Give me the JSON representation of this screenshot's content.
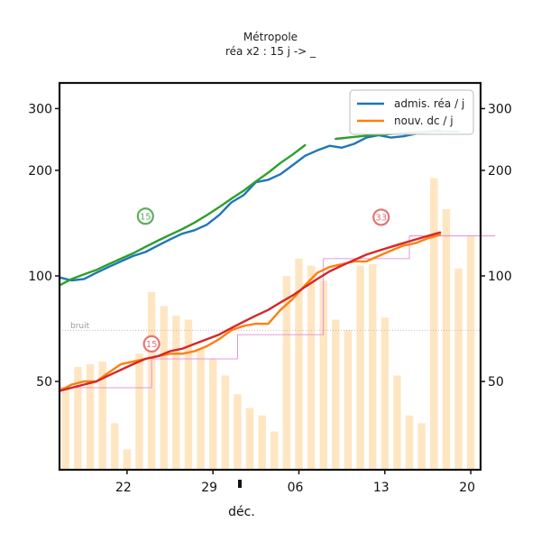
{
  "chart_data": {
    "type": "line",
    "title": "Métropole",
    "subtitle": "réa x2 : 15 j -> _",
    "xlabel": "déc.",
    "ylabel": "",
    "x_tick_labels": [
      "22",
      "29",
      "06",
      "13",
      "20"
    ],
    "x_tick_days": [
      0,
      7,
      14,
      21,
      28
    ],
    "x_range_days": [
      -5.5,
      28.8
    ],
    "y_ticks": [
      50,
      100,
      200,
      300
    ],
    "y_scale": "log",
    "y_range": [
      28,
      355
    ],
    "grid": false,
    "legend_position": "top-right",
    "legend": [
      {
        "label": "admis. réa / j",
        "color": "#1f77b4"
      },
      {
        "label": "nouv. dc / j",
        "color": "#ff7f0e"
      }
    ],
    "noise_label": "bruit",
    "noise_level": 70,
    "bars": {
      "color": "#ffe6c2",
      "start_day": -5,
      "values": [
        48,
        55,
        56,
        57,
        38,
        32,
        60,
        90,
        82,
        77,
        75,
        62,
        58,
        52,
        46,
        42,
        40,
        36,
        100,
        112,
        107,
        97,
        75,
        70,
        107,
        108,
        76,
        52,
        40,
        38,
        190,
        155,
        105,
        130,
        88,
        110,
        115,
        142,
        67,
        58,
        105,
        230,
        100,
        120,
        130,
        160,
        160,
        155,
        82,
        72,
        70
      ]
    },
    "series": [
      {
        "name": "admis. réa / j",
        "color": "#1f77b4",
        "x": [
          -5.5,
          -4.5,
          -3.5,
          -2.5,
          -1.5,
          -0.5,
          0.5,
          1.5,
          2.5,
          3.5,
          4.5,
          5.5,
          6.5,
          7.5,
          8.5,
          9.5,
          10.5,
          11.5,
          12.5,
          13.5,
          14.5,
          15.5,
          16.5,
          17.5,
          18.5,
          19.5,
          20.5,
          21.5,
          22.5,
          23.5,
          24.5,
          25.5
        ],
        "y": [
          99,
          97,
          98,
          102,
          106,
          110,
          114,
          117,
          122,
          127,
          132,
          135,
          140,
          149,
          162,
          170,
          185,
          188,
          195,
          207,
          220,
          228,
          235,
          232,
          238,
          248,
          252,
          248,
          250,
          254,
          258,
          260
        ]
      },
      {
        "name": "admis. réa lissé",
        "color": "#2ca02c",
        "x": [
          -5.5,
          -4.5,
          -3.5,
          -2.5,
          -1.5,
          -0.5,
          0.5,
          1.5,
          2.5,
          3.5,
          4.5,
          5.5,
          6.5,
          7.5,
          8.5,
          9.5,
          10.5,
          11.5,
          12.5,
          13.5,
          14.5
        ],
        "y": [
          94,
          98,
          101,
          104,
          108,
          112,
          116,
          121,
          126,
          131,
          136,
          142,
          149,
          157,
          166,
          175,
          186,
          197,
          210,
          222,
          236
        ]
      },
      {
        "name": "admis. réa lissé (suite)",
        "color": "#2ca02c",
        "x": [
          17.0,
          18.0,
          19.0,
          20.0,
          21.0,
          22.0,
          23.0,
          24.0,
          25.0,
          26.0,
          27.0
        ],
        "y": [
          246,
          248,
          250,
          252,
          253,
          255,
          256,
          257,
          258,
          258,
          258
        ]
      },
      {
        "name": "nouv. dc / j",
        "color": "#ff7f0e",
        "x": [
          -5.5,
          -4.5,
          -3.5,
          -2.5,
          -1.5,
          -0.5,
          0.5,
          1.5,
          2.5,
          3.5,
          4.5,
          5.5,
          6.5,
          7.5,
          8.5,
          9.5,
          10.5,
          11.5,
          12.5,
          13.5,
          14.5,
          15.5,
          16.5,
          17.5,
          18.5,
          19.5,
          20.5,
          21.5,
          22.5,
          23.5,
          24.5,
          25.5
        ],
        "y": [
          47,
          49,
          50,
          50,
          53,
          56,
          57,
          58,
          59,
          60,
          60,
          61,
          63,
          66,
          70,
          72,
          73,
          73,
          80,
          86,
          94,
          102,
          106,
          108,
          110,
          110,
          114,
          118,
          122,
          124,
          128,
          131
        ]
      },
      {
        "name": "nouv. dc lissé",
        "color": "#d62728",
        "x": [
          -5.5,
          -4.5,
          -3.5,
          -2.5,
          -1.5,
          -0.5,
          0.5,
          1.5,
          2.5,
          3.5,
          4.5,
          5.5,
          6.5,
          7.5,
          8.5,
          9.5,
          10.5,
          11.5,
          12.5,
          13.5,
          14.5,
          15.5,
          16.5,
          17.5,
          18.5,
          19.5,
          20.5,
          21.5,
          22.5,
          23.5,
          24.5,
          25.5
        ],
        "y": [
          47,
          48,
          49,
          50,
          52,
          54,
          56,
          58,
          59,
          61,
          62,
          64,
          66,
          68,
          71,
          74,
          77,
          80,
          84,
          88,
          93,
          98,
          103,
          107,
          111,
          115,
          118,
          121,
          124,
          127,
          130,
          133
        ]
      }
    ],
    "steps": {
      "color": "#e07ad5",
      "points": [
        [
          -5.5,
          48
        ],
        [
          2,
          48
        ],
        [
          2,
          58
        ],
        [
          9,
          58
        ],
        [
          9,
          68
        ],
        [
          16,
          68
        ],
        [
          16,
          112
        ],
        [
          23,
          112
        ],
        [
          23,
          130
        ],
        [
          30,
          130
        ]
      ]
    },
    "badges": [
      {
        "label": "15",
        "x": 1.5,
        "y": 148,
        "color": "#5fae5f"
      },
      {
        "label": "15",
        "x": 2.0,
        "y": 64,
        "color": "#e57373"
      },
      {
        "label": "33",
        "x": 20.7,
        "y": 147,
        "color": "#e57373"
      }
    ]
  }
}
